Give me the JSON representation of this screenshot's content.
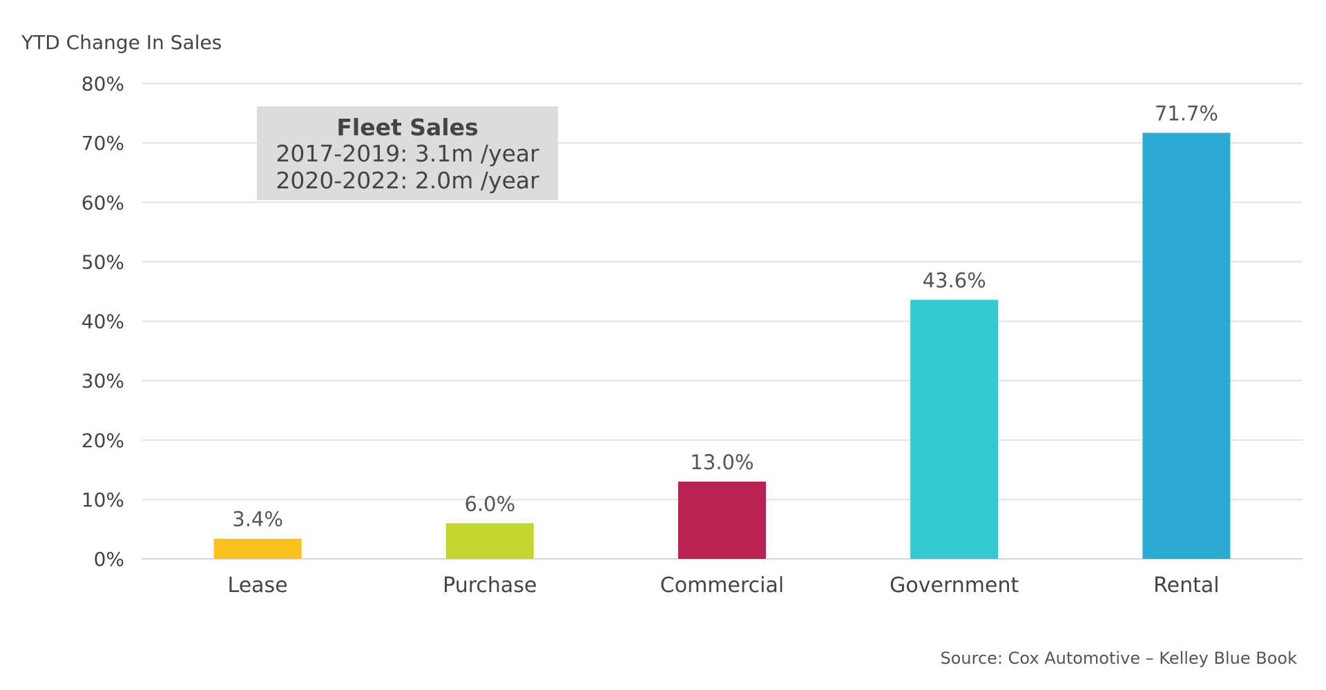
{
  "chart_data": {
    "type": "bar",
    "ylabel": "YTD Change In Sales",
    "categories": [
      "Lease",
      "Purchase",
      "Commercial",
      "Government",
      "Rental"
    ],
    "values": [
      3.4,
      6.0,
      13.0,
      43.6,
      71.7
    ],
    "value_labels": [
      "3.4%",
      "6.0%",
      "13.0%",
      "43.6%",
      "71.7%"
    ],
    "colors": [
      "#F9C21F",
      "#C2D530",
      "#B92352",
      "#35C9D4",
      "#2DAAD4"
    ],
    "ylim": [
      0,
      80
    ],
    "yticks": [
      0,
      10,
      20,
      30,
      40,
      50,
      60,
      70,
      80
    ],
    "ytick_labels": [
      "0%",
      "10%",
      "20%",
      "30%",
      "40%",
      "50%",
      "60%",
      "70%",
      "80%"
    ],
    "grid": true,
    "annotation": {
      "title": "Fleet Sales",
      "lines": [
        "2017-2019:  3.1m /year",
        "2020-2022:  2.0m /year"
      ]
    },
    "source": "Source: Cox Automotive – Kelley Blue Book"
  }
}
